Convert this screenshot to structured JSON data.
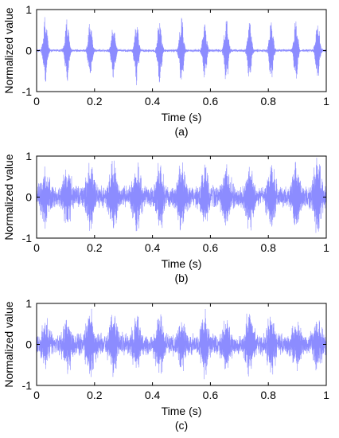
{
  "chart_data": [
    {
      "type": "line",
      "panel_label": "(a)",
      "xlabel": "Time (s)",
      "ylabel": "Normalized value",
      "xlim": [
        0,
        1
      ],
      "ylim": [
        -1,
        1
      ],
      "x_ticks": [
        "0",
        "0.2",
        "0.4",
        "0.6",
        "0.8",
        "1"
      ],
      "y_ticks": [
        "1",
        "0",
        "-1"
      ],
      "series_color": "#8080ff",
      "signal": "periodic-impulses",
      "impulse_times": [
        0.03,
        0.105,
        0.185,
        0.265,
        0.345,
        0.425,
        0.5,
        0.58,
        0.655,
        0.735,
        0.81,
        0.895,
        0.97
      ],
      "impulse_amplitudes": [
        0.9,
        0.9,
        0.8,
        0.8,
        0.85,
        0.9,
        0.95,
        0.75,
        0.85,
        0.85,
        0.8,
        0.85,
        0.8
      ],
      "noise_level": 0.04
    },
    {
      "type": "line",
      "panel_label": "(b)",
      "xlabel": "Time (s)",
      "ylabel": "Normalized value",
      "xlim": [
        0,
        1
      ],
      "ylim": [
        -1,
        1
      ],
      "x_ticks": [
        "0",
        "0.2",
        "0.4",
        "0.6",
        "0.8",
        "1"
      ],
      "y_ticks": [
        "1",
        "0",
        "-1"
      ],
      "series_color": "#8080ff",
      "signal": "noisy-impulses",
      "impulse_times": [
        0.03,
        0.105,
        0.185,
        0.265,
        0.345,
        0.425,
        0.5,
        0.58,
        0.655,
        0.735,
        0.81,
        0.895,
        0.97
      ],
      "impulse_amplitudes": [
        0.7,
        0.75,
        0.8,
        0.85,
        0.85,
        0.8,
        0.9,
        0.75,
        0.8,
        0.8,
        0.75,
        0.8,
        0.9
      ],
      "noise_level": 0.3
    },
    {
      "type": "line",
      "panel_label": "(c)",
      "xlabel": "Time (s)",
      "ylabel": "Normalized value",
      "xlim": [
        0,
        1
      ],
      "ylim": [
        -1,
        1
      ],
      "x_ticks": [
        "0",
        "0.2",
        "0.4",
        "0.6",
        "0.8",
        "1"
      ],
      "y_ticks": [
        "1",
        "0",
        "-1"
      ],
      "series_color": "#8080ff",
      "signal": "noisy-impulses",
      "impulse_times": [
        0.03,
        0.105,
        0.185,
        0.265,
        0.345,
        0.425,
        0.5,
        0.58,
        0.655,
        0.735,
        0.81,
        0.895,
        0.97
      ],
      "impulse_amplitudes": [
        0.55,
        0.6,
        0.9,
        0.7,
        0.65,
        0.75,
        0.6,
        0.7,
        0.65,
        0.75,
        0.7,
        0.65,
        0.6
      ],
      "noise_level": 0.3
    }
  ]
}
